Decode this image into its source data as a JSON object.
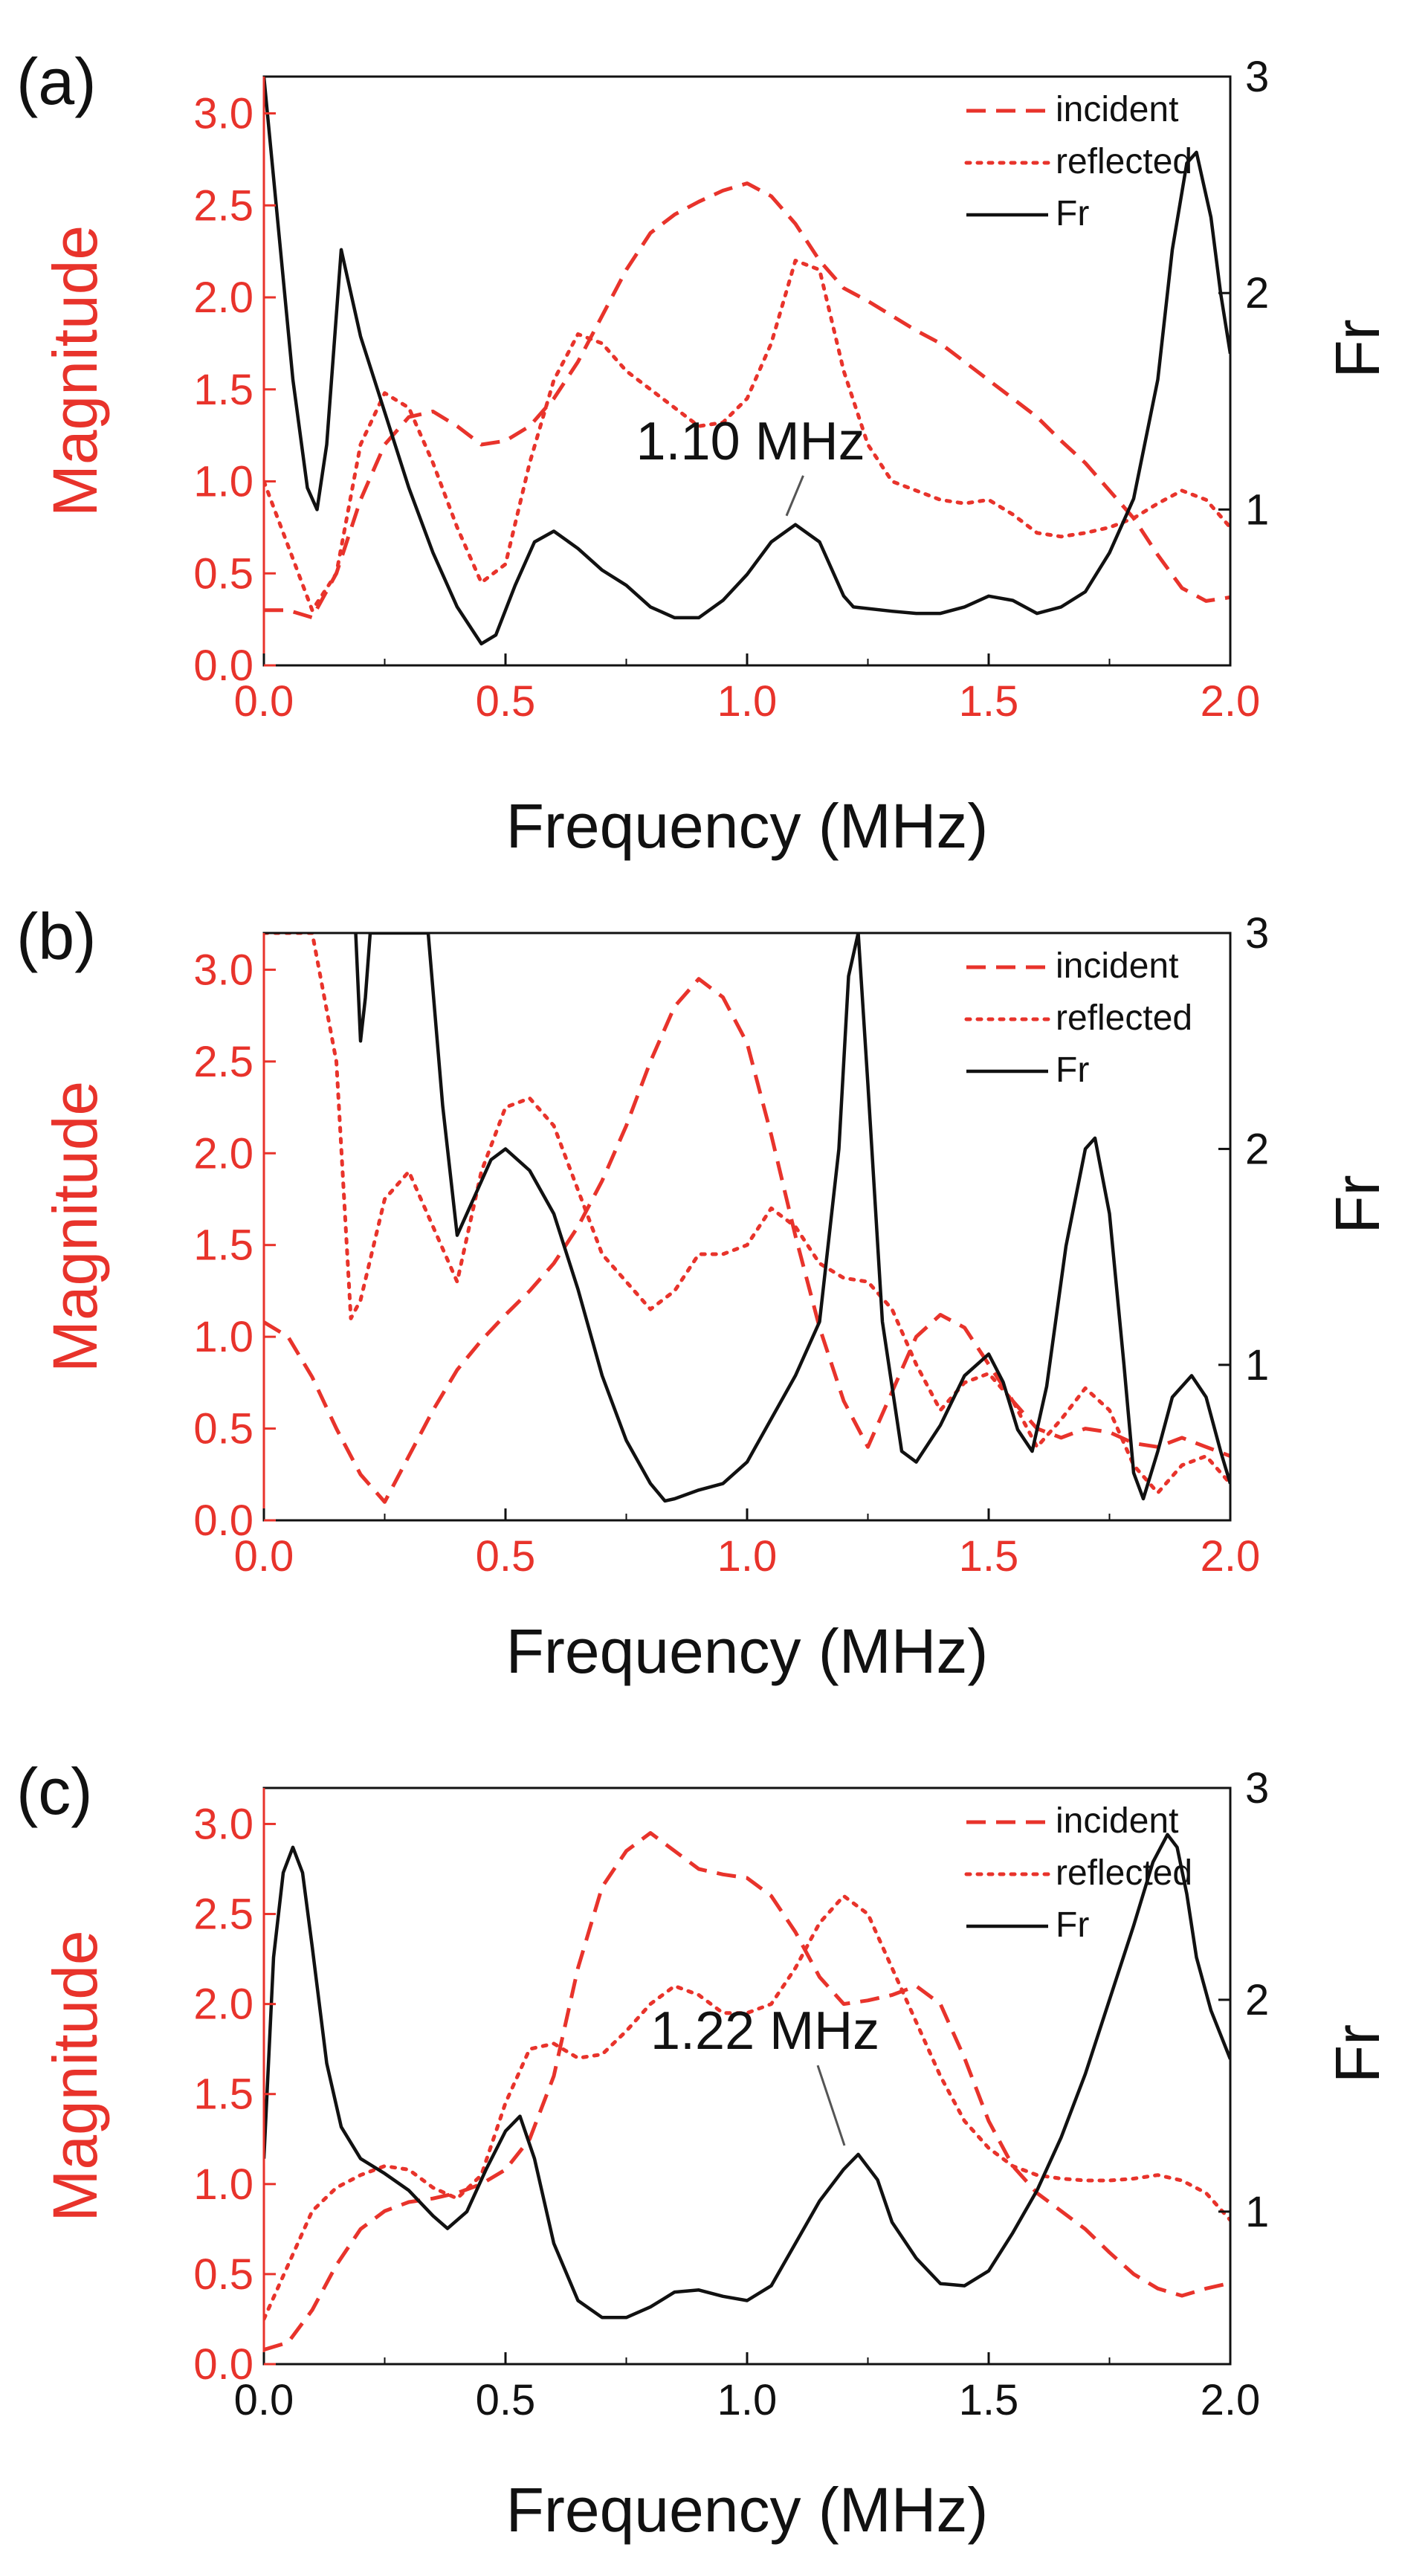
{
  "colors": {
    "incident": "#e8332b",
    "reflected": "#e8332b",
    "fr": "#111111",
    "axis_left": "#e8332b",
    "axis_right": "#111111"
  },
  "chart_data": [
    {
      "type": "line",
      "panel_label": "(a)",
      "xlabel": "Frequency (MHz)",
      "ylabel_left": "Magnitude",
      "ylabel_right": "Fr",
      "xlim": [
        0,
        2.0
      ],
      "ylim_left": [
        0,
        3.2
      ],
      "ylim_right": [
        0.28,
        3.0
      ],
      "xticks": [
        "0.0",
        "0.5",
        "1.0",
        "1.5",
        "2.0"
      ],
      "yticks_left": [
        "0.0",
        "0.5",
        "1.0",
        "1.5",
        "2.0",
        "2.5",
        "3.0"
      ],
      "yticks_right": [
        "1",
        "2",
        "3"
      ],
      "legend": [
        "incident",
        "reflected",
        "Fr"
      ],
      "annotation": {
        "text": "1.10 MHz",
        "x": 1.1,
        "y_right": 0.93,
        "text_x": 0.77,
        "text_y_left": 1.12
      },
      "series": [
        {
          "name": "incident",
          "axis": "left",
          "style": "dashed",
          "x": [
            0,
            0.05,
            0.1,
            0.15,
            0.2,
            0.25,
            0.3,
            0.35,
            0.4,
            0.45,
            0.5,
            0.55,
            0.6,
            0.65,
            0.7,
            0.75,
            0.8,
            0.85,
            0.9,
            0.95,
            1.0,
            1.05,
            1.1,
            1.15,
            1.2,
            1.25,
            1.3,
            1.35,
            1.4,
            1.45,
            1.5,
            1.55,
            1.6,
            1.65,
            1.7,
            1.75,
            1.8,
            1.85,
            1.9,
            1.95,
            2.0
          ],
          "y": [
            0.3,
            0.3,
            0.26,
            0.5,
            0.9,
            1.2,
            1.35,
            1.38,
            1.3,
            1.2,
            1.22,
            1.3,
            1.45,
            1.65,
            1.9,
            2.15,
            2.35,
            2.45,
            2.52,
            2.58,
            2.62,
            2.55,
            2.4,
            2.2,
            2.05,
            1.98,
            1.9,
            1.82,
            1.75,
            1.65,
            1.55,
            1.45,
            1.35,
            1.22,
            1.1,
            0.95,
            0.8,
            0.6,
            0.42,
            0.35,
            0.37
          ]
        },
        {
          "name": "reflected",
          "axis": "left",
          "style": "dotted",
          "x": [
            0,
            0.05,
            0.1,
            0.15,
            0.2,
            0.25,
            0.3,
            0.35,
            0.4,
            0.45,
            0.5,
            0.55,
            0.6,
            0.65,
            0.7,
            0.75,
            0.8,
            0.85,
            0.9,
            0.95,
            1.0,
            1.05,
            1.1,
            1.15,
            1.2,
            1.25,
            1.3,
            1.35,
            1.4,
            1.45,
            1.5,
            1.55,
            1.6,
            1.65,
            1.7,
            1.75,
            1.8,
            1.85,
            1.9,
            1.95,
            2.0
          ],
          "y": [
            1.0,
            0.65,
            0.3,
            0.5,
            1.2,
            1.48,
            1.4,
            1.1,
            0.75,
            0.45,
            0.55,
            1.1,
            1.55,
            1.8,
            1.75,
            1.6,
            1.5,
            1.4,
            1.3,
            1.32,
            1.45,
            1.75,
            2.2,
            2.15,
            1.6,
            1.2,
            1.0,
            0.95,
            0.9,
            0.88,
            0.9,
            0.82,
            0.72,
            0.7,
            0.72,
            0.75,
            0.8,
            0.88,
            0.95,
            0.9,
            0.75
          ]
        },
        {
          "name": "Fr",
          "axis": "right",
          "style": "solid",
          "x": [
            0,
            0.03,
            0.06,
            0.09,
            0.11,
            0.13,
            0.16,
            0.18,
            0.2,
            0.25,
            0.3,
            0.35,
            0.4,
            0.45,
            0.48,
            0.52,
            0.56,
            0.6,
            0.65,
            0.7,
            0.75,
            0.8,
            0.85,
            0.9,
            0.95,
            1.0,
            1.05,
            1.1,
            1.15,
            1.2,
            1.22,
            1.3,
            1.35,
            1.4,
            1.45,
            1.5,
            1.55,
            1.6,
            1.65,
            1.7,
            1.75,
            1.8,
            1.85,
            1.88,
            1.91,
            1.93,
            1.96,
            1.98,
            2.0
          ],
          "y": [
            3.0,
            2.3,
            1.6,
            1.1,
            1.0,
            1.3,
            2.2,
            2.0,
            1.8,
            1.45,
            1.1,
            0.8,
            0.55,
            0.38,
            0.42,
            0.65,
            0.85,
            0.9,
            0.82,
            0.72,
            0.65,
            0.55,
            0.5,
            0.5,
            0.58,
            0.7,
            0.85,
            0.93,
            0.85,
            0.6,
            0.55,
            0.53,
            0.52,
            0.52,
            0.55,
            0.6,
            0.58,
            0.52,
            0.55,
            0.62,
            0.8,
            1.05,
            1.6,
            2.2,
            2.6,
            2.65,
            2.35,
            2.0,
            1.72
          ]
        }
      ]
    },
    {
      "type": "line",
      "panel_label": "(b)",
      "xlabel": "Frequency (MHz)",
      "ylabel_left": "Magnitude",
      "ylabel_right": "Fr",
      "xlim": [
        0,
        2.0
      ],
      "ylim_left": [
        0,
        3.2
      ],
      "ylim_right": [
        0.28,
        3.0
      ],
      "xticks": [
        "0.0",
        "0.5",
        "1.0",
        "1.5",
        "2.0"
      ],
      "yticks_left": [
        "0.0",
        "0.5",
        "1.0",
        "1.5",
        "2.0",
        "2.5",
        "3.0"
      ],
      "yticks_right": [
        "1",
        "2",
        "3"
      ],
      "legend": [
        "incident",
        "reflected",
        "Fr"
      ],
      "series": [
        {
          "name": "incident",
          "axis": "left",
          "style": "dashed",
          "x": [
            0,
            0.05,
            0.1,
            0.15,
            0.2,
            0.25,
            0.3,
            0.35,
            0.4,
            0.45,
            0.5,
            0.55,
            0.6,
            0.65,
            0.7,
            0.75,
            0.8,
            0.85,
            0.9,
            0.95,
            1.0,
            1.05,
            1.1,
            1.15,
            1.2,
            1.25,
            1.3,
            1.35,
            1.4,
            1.45,
            1.5,
            1.55,
            1.6,
            1.65,
            1.7,
            1.75,
            1.8,
            1.85,
            1.9,
            1.95,
            2.0
          ],
          "y": [
            1.08,
            1.0,
            0.78,
            0.5,
            0.25,
            0.1,
            0.35,
            0.6,
            0.82,
            0.98,
            1.12,
            1.25,
            1.4,
            1.6,
            1.85,
            2.15,
            2.5,
            2.8,
            2.95,
            2.85,
            2.6,
            2.1,
            1.55,
            1.05,
            0.65,
            0.4,
            0.7,
            1.0,
            1.12,
            1.05,
            0.85,
            0.65,
            0.5,
            0.45,
            0.5,
            0.48,
            0.42,
            0.4,
            0.45,
            0.4,
            0.35
          ]
        },
        {
          "name": "reflected",
          "axis": "left",
          "style": "dotted",
          "x": [
            0,
            0.05,
            0.1,
            0.15,
            0.18,
            0.2,
            0.25,
            0.3,
            0.35,
            0.4,
            0.45,
            0.5,
            0.55,
            0.6,
            0.65,
            0.7,
            0.75,
            0.8,
            0.85,
            0.9,
            0.95,
            1.0,
            1.05,
            1.1,
            1.15,
            1.2,
            1.25,
            1.3,
            1.35,
            1.4,
            1.45,
            1.5,
            1.55,
            1.6,
            1.65,
            1.7,
            1.75,
            1.8,
            1.85,
            1.9,
            1.95,
            2.0
          ],
          "y": [
            3.2,
            3.2,
            3.2,
            2.5,
            1.1,
            1.2,
            1.75,
            1.9,
            1.6,
            1.3,
            1.9,
            2.25,
            2.3,
            2.15,
            1.8,
            1.45,
            1.3,
            1.15,
            1.25,
            1.45,
            1.45,
            1.5,
            1.7,
            1.6,
            1.4,
            1.32,
            1.3,
            1.15,
            0.85,
            0.6,
            0.75,
            0.8,
            0.65,
            0.4,
            0.55,
            0.72,
            0.6,
            0.3,
            0.15,
            0.3,
            0.35,
            0.2
          ]
        },
        {
          "name": "Fr",
          "axis": "right",
          "style": "solid",
          "x": [
            0.19,
            0.2,
            0.21,
            0.22,
            0.34,
            0.37,
            0.4,
            0.43,
            0.47,
            0.5,
            0.55,
            0.6,
            0.65,
            0.7,
            0.75,
            0.8,
            0.83,
            0.85,
            0.9,
            0.95,
            1.0,
            1.05,
            1.1,
            1.15,
            1.19,
            1.21,
            1.23,
            1.25,
            1.28,
            1.32,
            1.35,
            1.4,
            1.45,
            1.5,
            1.53,
            1.56,
            1.59,
            1.62,
            1.66,
            1.7,
            1.72,
            1.75,
            1.78,
            1.8,
            1.82,
            1.85,
            1.88,
            1.92,
            1.95,
            1.98,
            2.0
          ],
          "y": [
            3.0,
            2.5,
            2.7,
            3.0,
            3.0,
            2.2,
            1.6,
            1.75,
            1.95,
            2.0,
            1.9,
            1.7,
            1.35,
            0.95,
            0.65,
            0.45,
            0.37,
            0.38,
            0.42,
            0.45,
            0.55,
            0.75,
            0.95,
            1.2,
            2.0,
            2.8,
            3.0,
            2.3,
            1.2,
            0.6,
            0.55,
            0.72,
            0.95,
            1.05,
            0.92,
            0.7,
            0.6,
            0.9,
            1.55,
            2.0,
            2.05,
            1.7,
            1.0,
            0.5,
            0.38,
            0.6,
            0.85,
            0.95,
            0.85,
            0.6,
            0.45
          ]
        }
      ]
    },
    {
      "type": "line",
      "panel_label": "(c)",
      "xlabel": "Frequency (MHz)",
      "ylabel_left": "Magnitude",
      "ylabel_right": "Fr",
      "xlim": [
        0,
        2.0
      ],
      "ylim_left": [
        0,
        3.2
      ],
      "ylim_right": [
        0.28,
        3.0
      ],
      "xticks": [
        "0.0",
        "0.5",
        "1.0",
        "1.5",
        "2.0"
      ],
      "yticks_left": [
        "0.0",
        "0.5",
        "1.0",
        "1.5",
        "2.0",
        "2.5",
        "3.0"
      ],
      "yticks_right": [
        "1",
        "2",
        "3"
      ],
      "legend": [
        "incident",
        "reflected",
        "Fr"
      ],
      "annotation": {
        "text": "1.22 MHz",
        "x": 1.22,
        "y_right": 1.27,
        "text_x": 0.8,
        "text_y_left": 1.75
      },
      "series": [
        {
          "name": "incident",
          "axis": "left",
          "style": "dashed",
          "x": [
            0,
            0.05,
            0.1,
            0.15,
            0.2,
            0.25,
            0.3,
            0.35,
            0.4,
            0.45,
            0.5,
            0.55,
            0.6,
            0.65,
            0.7,
            0.75,
            0.8,
            0.85,
            0.9,
            0.95,
            1.0,
            1.05,
            1.1,
            1.15,
            1.2,
            1.25,
            1.3,
            1.35,
            1.4,
            1.45,
            1.5,
            1.55,
            1.6,
            1.65,
            1.7,
            1.75,
            1.8,
            1.85,
            1.9,
            1.95,
            2.0
          ],
          "y": [
            0.08,
            0.12,
            0.3,
            0.55,
            0.75,
            0.85,
            0.9,
            0.92,
            0.95,
            1.0,
            1.08,
            1.25,
            1.6,
            2.2,
            2.65,
            2.85,
            2.95,
            2.85,
            2.75,
            2.72,
            2.7,
            2.6,
            2.4,
            2.15,
            2.0,
            2.02,
            2.05,
            2.1,
            2.0,
            1.7,
            1.35,
            1.1,
            0.95,
            0.85,
            0.75,
            0.62,
            0.5,
            0.42,
            0.38,
            0.42,
            0.45
          ]
        },
        {
          "name": "reflected",
          "axis": "left",
          "style": "dotted",
          "x": [
            0,
            0.05,
            0.1,
            0.15,
            0.2,
            0.25,
            0.3,
            0.35,
            0.4,
            0.45,
            0.5,
            0.55,
            0.6,
            0.65,
            0.7,
            0.75,
            0.8,
            0.85,
            0.9,
            0.95,
            1.0,
            1.05,
            1.1,
            1.15,
            1.2,
            1.25,
            1.3,
            1.35,
            1.4,
            1.45,
            1.5,
            1.55,
            1.6,
            1.65,
            1.7,
            1.75,
            1.8,
            1.85,
            1.9,
            1.95,
            2.0
          ],
          "y": [
            0.25,
            0.55,
            0.85,
            0.98,
            1.05,
            1.1,
            1.08,
            0.98,
            0.92,
            1.05,
            1.45,
            1.75,
            1.78,
            1.7,
            1.72,
            1.85,
            2.0,
            2.1,
            2.05,
            1.95,
            1.95,
            2.0,
            2.2,
            2.45,
            2.6,
            2.5,
            2.2,
            1.9,
            1.6,
            1.35,
            1.2,
            1.1,
            1.05,
            1.03,
            1.02,
            1.02,
            1.03,
            1.05,
            1.02,
            0.95,
            0.8
          ]
        },
        {
          "name": "Fr",
          "axis": "right",
          "style": "solid",
          "x": [
            0,
            0.02,
            0.04,
            0.06,
            0.08,
            0.1,
            0.13,
            0.16,
            0.2,
            0.25,
            0.3,
            0.35,
            0.38,
            0.42,
            0.46,
            0.5,
            0.53,
            0.56,
            0.6,
            0.65,
            0.7,
            0.75,
            0.8,
            0.85,
            0.9,
            0.95,
            1.0,
            1.05,
            1.1,
            1.15,
            1.2,
            1.23,
            1.27,
            1.3,
            1.35,
            1.4,
            1.45,
            1.5,
            1.55,
            1.6,
            1.65,
            1.7,
            1.75,
            1.8,
            1.84,
            1.87,
            1.89,
            1.91,
            1.93,
            1.96,
            2.0
          ],
          "y": [
            1.25,
            2.2,
            2.6,
            2.72,
            2.6,
            2.25,
            1.7,
            1.4,
            1.25,
            1.18,
            1.1,
            0.98,
            0.92,
            1.0,
            1.2,
            1.38,
            1.45,
            1.25,
            0.85,
            0.58,
            0.5,
            0.5,
            0.55,
            0.62,
            0.63,
            0.6,
            0.58,
            0.65,
            0.85,
            1.05,
            1.2,
            1.27,
            1.15,
            0.95,
            0.78,
            0.66,
            0.65,
            0.72,
            0.9,
            1.1,
            1.35,
            1.65,
            2.0,
            2.35,
            2.65,
            2.78,
            2.72,
            2.5,
            2.2,
            1.95,
            1.72
          ]
        }
      ]
    }
  ]
}
